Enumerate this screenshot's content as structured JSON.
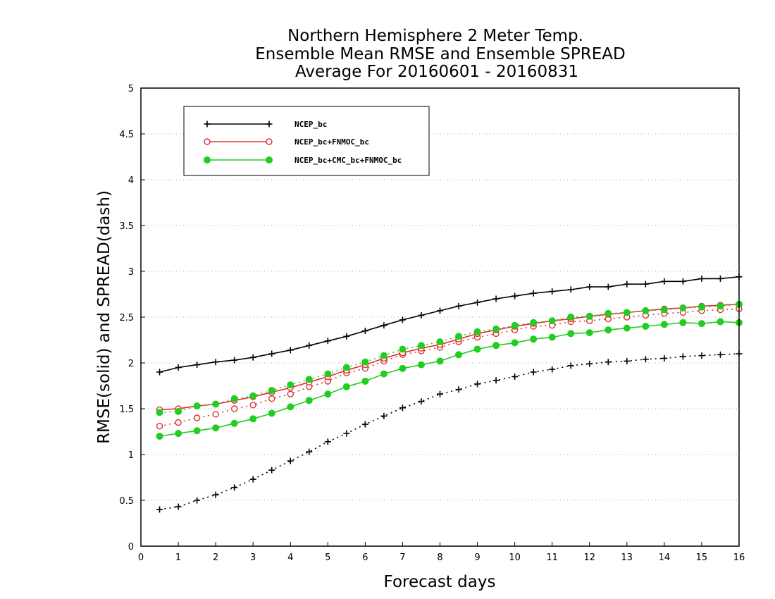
{
  "chart_data": {
    "type": "line",
    "title": [
      "Northern Hemisphere 2 Meter Temp.",
      "Ensemble Mean RMSE and Ensemble SPREAD",
      "Average For 20160601 - 20160831"
    ],
    "xlabel": "Forecast days",
    "ylabel": "RMSE(solid) and SPREAD(dash)",
    "xlim": [
      0,
      16
    ],
    "ylim": [
      0,
      5
    ],
    "xticks": [
      0,
      1,
      2,
      3,
      4,
      5,
      6,
      7,
      8,
      9,
      10,
      11,
      12,
      13,
      14,
      15,
      16
    ],
    "xtick_labels": [
      "0",
      "1",
      "2",
      "3",
      "4",
      "5",
      "6",
      "7",
      "8",
      "9",
      "10",
      "11",
      "12",
      "13",
      "14",
      "15",
      "16"
    ],
    "yticks": [
      0,
      0.5,
      1,
      1.5,
      2,
      2.5,
      3,
      3.5,
      4,
      4.5,
      5
    ],
    "ytick_labels": [
      "0",
      "0.5",
      "1",
      "1.5",
      "2",
      "2.5",
      "3",
      "3.5",
      "4",
      "4.5",
      "5"
    ],
    "grid": "horizontal dotted",
    "legend_position": "top-left",
    "x": [
      0.5,
      1,
      1.5,
      2,
      2.5,
      3,
      3.5,
      4,
      4.5,
      5,
      5.5,
      6,
      6.5,
      7,
      7.5,
      8,
      8.5,
      9,
      9.5,
      10,
      10.5,
      11,
      11.5,
      12,
      12.5,
      13,
      13.5,
      14,
      14.5,
      15,
      15.5,
      16
    ],
    "series": [
      {
        "name": "NCEP_bc",
        "color": "#000000",
        "marker": "plus",
        "rmse": [
          1.9,
          1.95,
          1.98,
          2.01,
          2.03,
          2.06,
          2.1,
          2.14,
          2.19,
          2.24,
          2.29,
          2.35,
          2.41,
          2.47,
          2.52,
          2.57,
          2.62,
          2.66,
          2.7,
          2.73,
          2.76,
          2.78,
          2.8,
          2.83,
          2.83,
          2.86,
          2.86,
          2.89,
          2.89,
          2.92,
          2.92,
          2.94
        ],
        "spread": [
          0.4,
          0.43,
          0.5,
          0.56,
          0.64,
          0.73,
          0.83,
          0.93,
          1.03,
          1.14,
          1.23,
          1.33,
          1.42,
          1.51,
          1.58,
          1.66,
          1.71,
          1.77,
          1.81,
          1.85,
          1.9,
          1.93,
          1.97,
          1.99,
          2.01,
          2.02,
          2.04,
          2.05,
          2.07,
          2.08,
          2.09,
          2.1
        ]
      },
      {
        "name": "NCEP_bc+FNMOC_bc",
        "color": "#e03030",
        "marker": "open-circle",
        "rmse": [
          1.49,
          1.5,
          1.53,
          1.55,
          1.59,
          1.63,
          1.68,
          1.73,
          1.79,
          1.85,
          1.92,
          1.98,
          2.05,
          2.11,
          2.16,
          2.2,
          2.26,
          2.32,
          2.36,
          2.4,
          2.43,
          2.46,
          2.48,
          2.51,
          2.53,
          2.55,
          2.57,
          2.59,
          2.6,
          2.62,
          2.63,
          2.64
        ],
        "spread": [
          1.31,
          1.35,
          1.4,
          1.44,
          1.5,
          1.54,
          1.61,
          1.66,
          1.74,
          1.8,
          1.89,
          1.94,
          2.02,
          2.09,
          2.13,
          2.17,
          2.23,
          2.28,
          2.32,
          2.36,
          2.4,
          2.41,
          2.45,
          2.46,
          2.48,
          2.5,
          2.52,
          2.54,
          2.55,
          2.57,
          2.58,
          2.59
        ]
      },
      {
        "name": "NCEP_bc+CMC_bc+FNMOC_bc",
        "color": "#22cc22",
        "marker": "filled-circle",
        "rmse": [
          1.2,
          1.23,
          1.26,
          1.29,
          1.34,
          1.39,
          1.45,
          1.52,
          1.59,
          1.66,
          1.74,
          1.8,
          1.88,
          1.94,
          1.98,
          2.02,
          2.09,
          2.15,
          2.19,
          2.22,
          2.26,
          2.28,
          2.32,
          2.33,
          2.36,
          2.38,
          2.4,
          2.42,
          2.44,
          2.43,
          2.45,
          2.44
        ],
        "spread": [
          1.46,
          1.47,
          1.53,
          1.55,
          1.61,
          1.64,
          1.7,
          1.76,
          1.82,
          1.88,
          1.95,
          2.01,
          2.08,
          2.15,
          2.19,
          2.23,
          2.29,
          2.34,
          2.37,
          2.41,
          2.44,
          2.46,
          2.5,
          2.51,
          2.54,
          2.55,
          2.57,
          2.58,
          2.6,
          2.61,
          2.62,
          2.64
        ]
      }
    ]
  }
}
